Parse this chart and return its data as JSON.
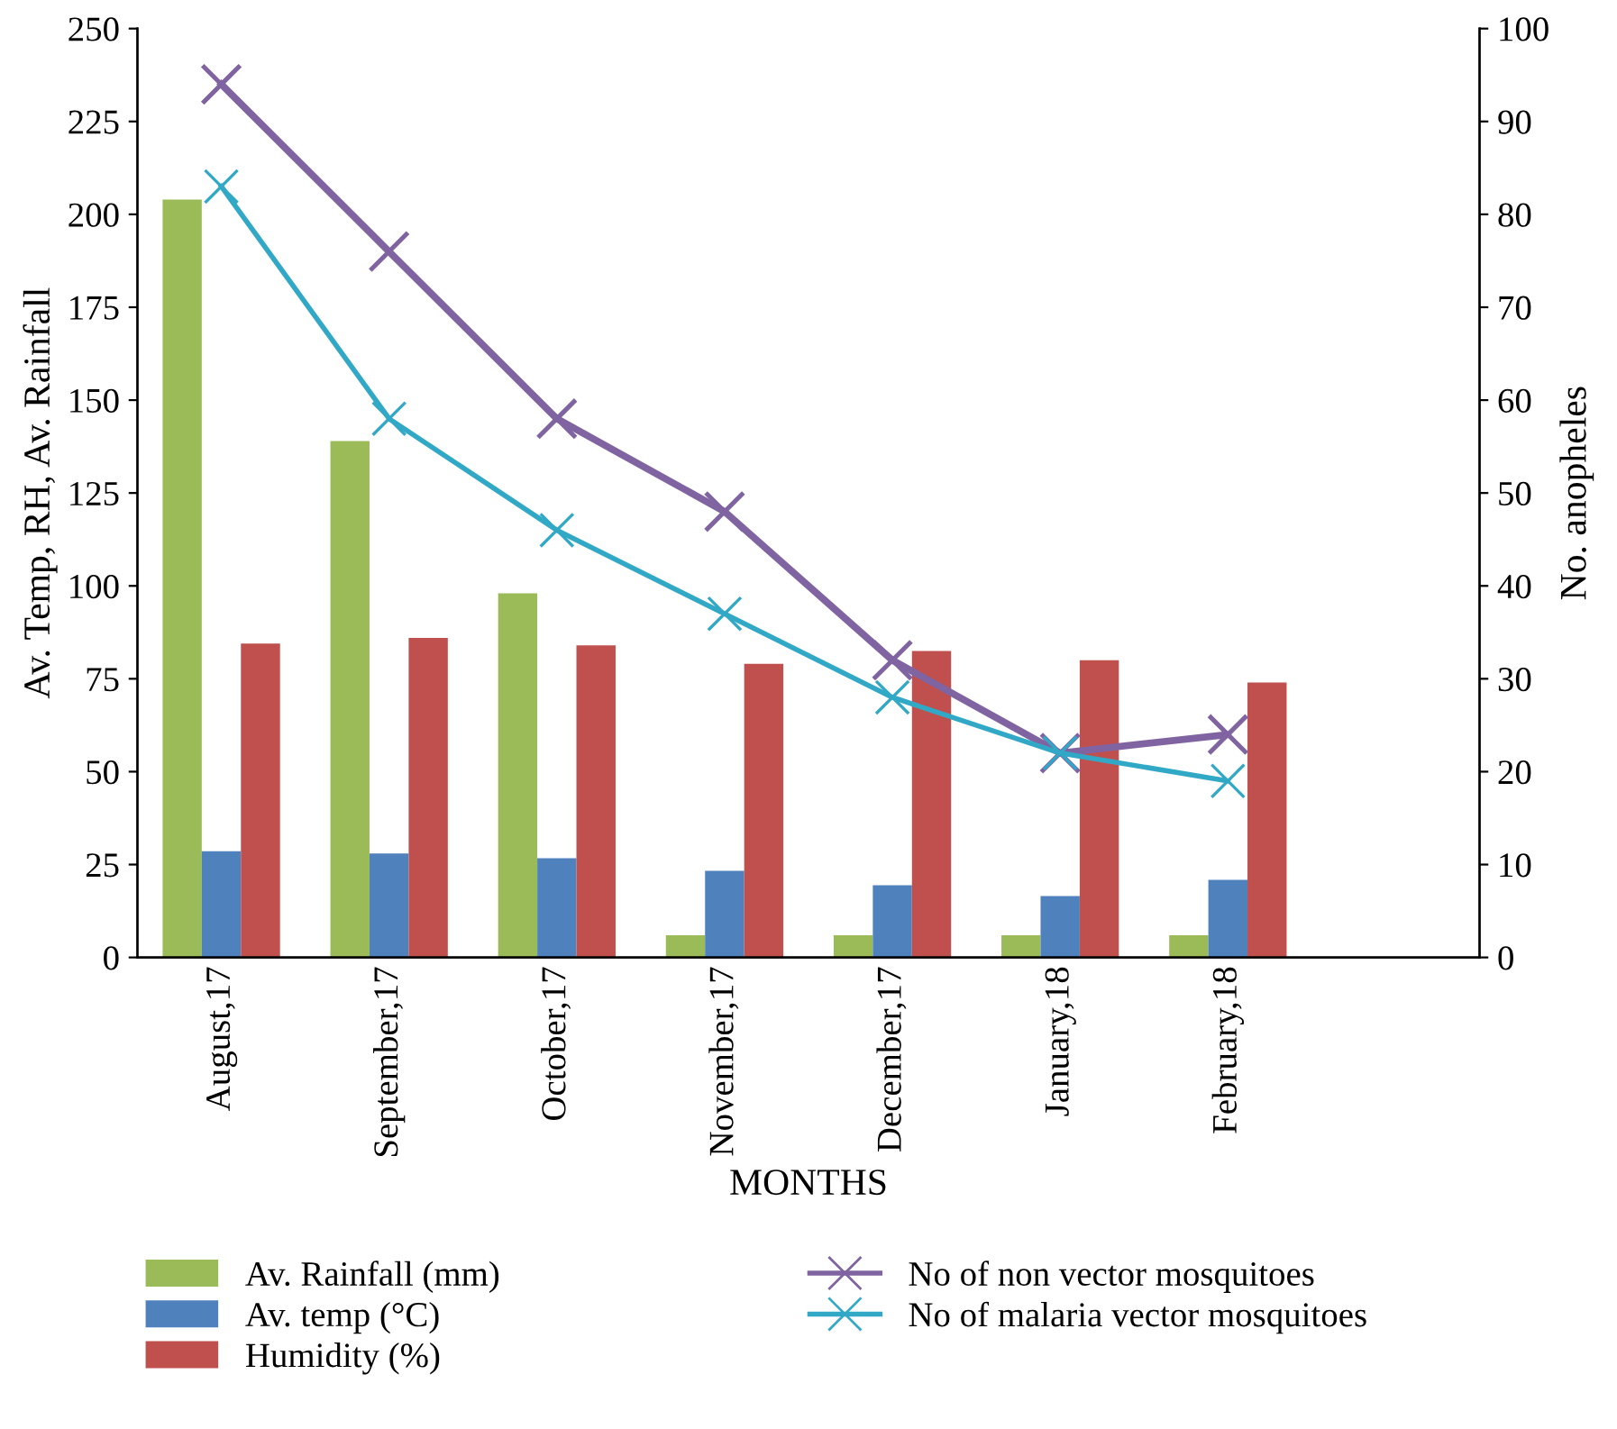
{
  "chart_data": {
    "type": "bar",
    "xlabel": "MONTHS",
    "ylabel": "Av. Temp, RH, Av. Rainfall",
    "y2label": "No. anopheles",
    "categories": [
      "August,17",
      "September,17",
      "October,17",
      "November,17",
      "December,17",
      "January,18",
      "February,18",
      null
    ],
    "series": [
      {
        "name": "Av. Rainfall (mm)",
        "color": "#9bbb59",
        "values": [
          204,
          139,
          98,
          6,
          6,
          6,
          6,
          null
        ]
      },
      {
        "name": "Av. temp (°C)",
        "color": "#4f81bd",
        "values": [
          28.6,
          28,
          26.7,
          23.3,
          19.4,
          16.5,
          20.9,
          null
        ]
      },
      {
        "name": "Humidity (%)",
        "color": "#c0504d",
        "values": [
          84.5,
          86,
          84,
          79,
          82.5,
          80,
          74,
          null
        ]
      },
      {
        "name": "No of non vector mosquitoes",
        "type": "line",
        "axis": "y2",
        "color": "#8064a2",
        "marker": "cross",
        "values": [
          94,
          76,
          58,
          48,
          32,
          22,
          24,
          null
        ]
      },
      {
        "name": "No of malaria vector mosquitoes",
        "type": "line",
        "axis": "y2",
        "color": "#31a9c6",
        "marker": "cross",
        "values": [
          83,
          58,
          46,
          37,
          28,
          22,
          19,
          null
        ]
      }
    ],
    "ylim": [
      0,
      250
    ],
    "yticks": [
      0,
      25,
      50,
      75,
      100,
      125,
      150,
      175,
      200,
      225,
      250
    ],
    "y2lim": [
      0,
      100
    ],
    "y2ticks": [
      0,
      10,
      20,
      30,
      40,
      50,
      60,
      70,
      80,
      90,
      100
    ],
    "grid": false,
    "legend": "bottom"
  }
}
